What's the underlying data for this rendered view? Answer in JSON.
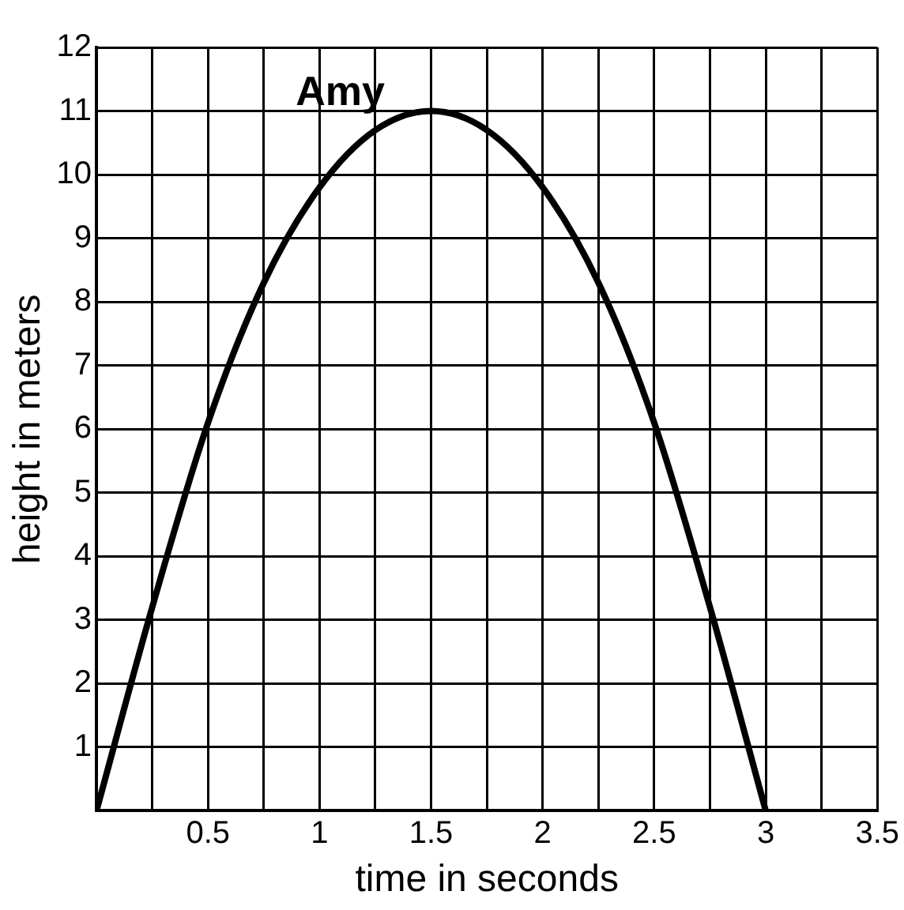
{
  "chart_data": {
    "type": "line",
    "xlabel": "time in seconds",
    "ylabel": "height in meters",
    "x": [
      0,
      0.25,
      0.5,
      0.75,
      1,
      1.25,
      1.5,
      1.75,
      2,
      2.25,
      2.5,
      2.75,
      3
    ],
    "series": [
      {
        "name": "Amy",
        "color": "#000000",
        "values": [
          0,
          3.2,
          6.1,
          8.3,
          9.8,
          10.7,
          11,
          10.7,
          9.8,
          8.3,
          6.1,
          3.2,
          0
        ]
      }
    ],
    "xlim": [
      0,
      3.5
    ],
    "xticks": [
      {
        "value": 0,
        "label": null
      },
      {
        "value": 0.25,
        "label": null
      },
      0.5,
      {
        "value": 0.75,
        "label": null
      },
      1,
      {
        "value": 1.25,
        "label": null
      },
      1.5,
      {
        "value": 1.75,
        "label": null
      },
      2,
      {
        "value": 2.25,
        "label": null
      },
      2.5,
      {
        "value": 2.75,
        "label": null
      },
      3,
      {
        "value": 3.25,
        "label": null
      },
      3.5
    ],
    "ylim": [
      0,
      12
    ],
    "yticks": [
      {
        "value": 0,
        "label": null
      },
      1,
      2,
      3,
      4,
      5,
      6,
      7,
      8,
      9,
      10,
      11,
      12
    ],
    "grid": true,
    "legend": false,
    "marker": "none",
    "line_style": "solid"
  }
}
